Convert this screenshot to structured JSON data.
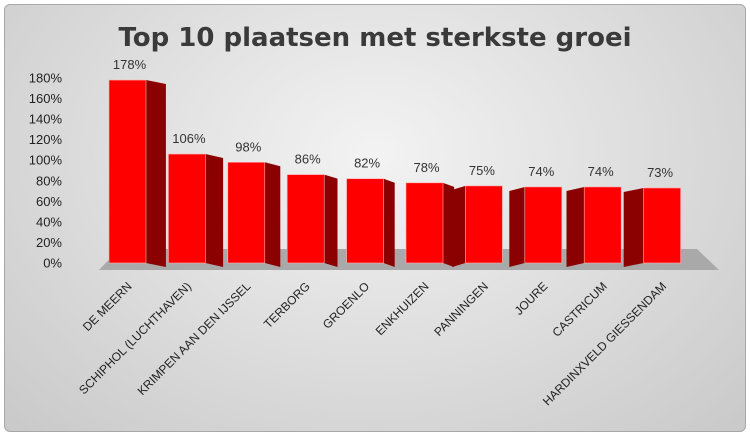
{
  "chart_data": {
    "type": "bar",
    "title": "Top 10 plaatsen met sterkste groei",
    "categories": [
      "DE MEERN",
      "SCHIPHOL (LUCHTHAVEN)",
      "KRIMPEN AAN DEN IJSSEL",
      "TERBORG",
      "GROENLO",
      "ENKHUIZEN",
      "PANNINGEN",
      "JOURE",
      "CASTRICUM",
      "HARDINXVELD GIESSENDAM"
    ],
    "values": [
      178,
      106,
      98,
      86,
      82,
      78,
      75,
      74,
      74,
      73
    ],
    "data_labels": [
      "178%",
      "106%",
      "98%",
      "86%",
      "82%",
      "78%",
      "75%",
      "74%",
      "74%",
      "73%"
    ],
    "y_ticks": [
      "0%",
      "20%",
      "40%",
      "60%",
      "80%",
      "100%",
      "120%",
      "140%",
      "160%",
      "180%"
    ],
    "ylim": [
      0,
      180
    ],
    "grid": false,
    "legend": "none",
    "bar_color": "#ff0000",
    "bar_side_color": "#8b0000",
    "floor_color": "#a9a9a9"
  }
}
